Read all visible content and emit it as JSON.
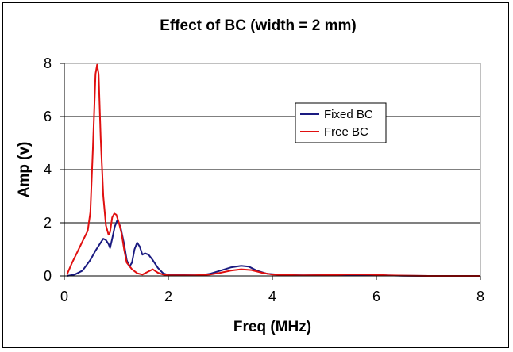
{
  "chart_data": {
    "type": "line",
    "title": "Effect of BC (width = 2 mm)",
    "xlabel": "Freq (MHz)",
    "ylabel": "Amp (v)",
    "xlim": [
      0,
      8
    ],
    "ylim": [
      0,
      8
    ],
    "x_ticks": [
      0,
      2,
      4,
      6,
      8
    ],
    "y_ticks": [
      0,
      2,
      4,
      6,
      8
    ],
    "grid": "horizontal",
    "legend_position": "top-right",
    "series": [
      {
        "name": "Fixed BC",
        "color": "#1a1a80",
        "points": [
          [
            0.05,
            0
          ],
          [
            0.2,
            0.05
          ],
          [
            0.35,
            0.2
          ],
          [
            0.5,
            0.6
          ],
          [
            0.6,
            0.95
          ],
          [
            0.7,
            1.25
          ],
          [
            0.75,
            1.4
          ],
          [
            0.8,
            1.35
          ],
          [
            0.85,
            1.2
          ],
          [
            0.88,
            1.05
          ],
          [
            0.92,
            1.4
          ],
          [
            0.97,
            1.85
          ],
          [
            1.02,
            2.1
          ],
          [
            1.08,
            1.85
          ],
          [
            1.15,
            1.2
          ],
          [
            1.2,
            0.6
          ],
          [
            1.25,
            0.35
          ],
          [
            1.3,
            0.5
          ],
          [
            1.35,
            1.0
          ],
          [
            1.4,
            1.25
          ],
          [
            1.45,
            1.1
          ],
          [
            1.5,
            0.8
          ],
          [
            1.55,
            0.85
          ],
          [
            1.62,
            0.8
          ],
          [
            1.7,
            0.6
          ],
          [
            1.8,
            0.3
          ],
          [
            1.9,
            0.1
          ],
          [
            2.0,
            0.03
          ],
          [
            2.3,
            0.03
          ],
          [
            2.6,
            0.02
          ],
          [
            2.8,
            0.08
          ],
          [
            3.0,
            0.2
          ],
          [
            3.2,
            0.32
          ],
          [
            3.4,
            0.38
          ],
          [
            3.55,
            0.35
          ],
          [
            3.7,
            0.2
          ],
          [
            3.9,
            0.08
          ],
          [
            4.2,
            0.04
          ],
          [
            4.6,
            0.02
          ],
          [
            5.0,
            0.03
          ],
          [
            5.5,
            0.04
          ],
          [
            6.0,
            0.03
          ],
          [
            6.5,
            0.01
          ],
          [
            7.0,
            0
          ],
          [
            8.0,
            0
          ]
        ]
      },
      {
        "name": "Free BC",
        "color": "#e01010",
        "points": [
          [
            0.05,
            0.05
          ],
          [
            0.15,
            0.5
          ],
          [
            0.25,
            0.9
          ],
          [
            0.35,
            1.3
          ],
          [
            0.45,
            1.7
          ],
          [
            0.5,
            2.4
          ],
          [
            0.55,
            4.8
          ],
          [
            0.6,
            7.6
          ],
          [
            0.63,
            7.95
          ],
          [
            0.66,
            7.6
          ],
          [
            0.7,
            5.2
          ],
          [
            0.75,
            3.0
          ],
          [
            0.8,
            1.9
          ],
          [
            0.85,
            1.55
          ],
          [
            0.88,
            1.65
          ],
          [
            0.92,
            2.2
          ],
          [
            0.96,
            2.35
          ],
          [
            1.0,
            2.3
          ],
          [
            1.05,
            2.0
          ],
          [
            1.1,
            1.6
          ],
          [
            1.15,
            1.0
          ],
          [
            1.2,
            0.5
          ],
          [
            1.3,
            0.25
          ],
          [
            1.4,
            0.1
          ],
          [
            1.5,
            0.05
          ],
          [
            1.6,
            0.15
          ],
          [
            1.7,
            0.25
          ],
          [
            1.8,
            0.12
          ],
          [
            1.9,
            0.05
          ],
          [
            2.0,
            0.02
          ],
          [
            2.5,
            0.02
          ],
          [
            2.8,
            0.05
          ],
          [
            3.0,
            0.12
          ],
          [
            3.2,
            0.2
          ],
          [
            3.4,
            0.25
          ],
          [
            3.6,
            0.22
          ],
          [
            3.8,
            0.12
          ],
          [
            4.0,
            0.05
          ],
          [
            4.5,
            0.02
          ],
          [
            5.0,
            0.03
          ],
          [
            5.5,
            0.06
          ],
          [
            5.9,
            0.05
          ],
          [
            6.2,
            0.02
          ],
          [
            7.0,
            0
          ],
          [
            8.0,
            0
          ]
        ]
      }
    ]
  }
}
